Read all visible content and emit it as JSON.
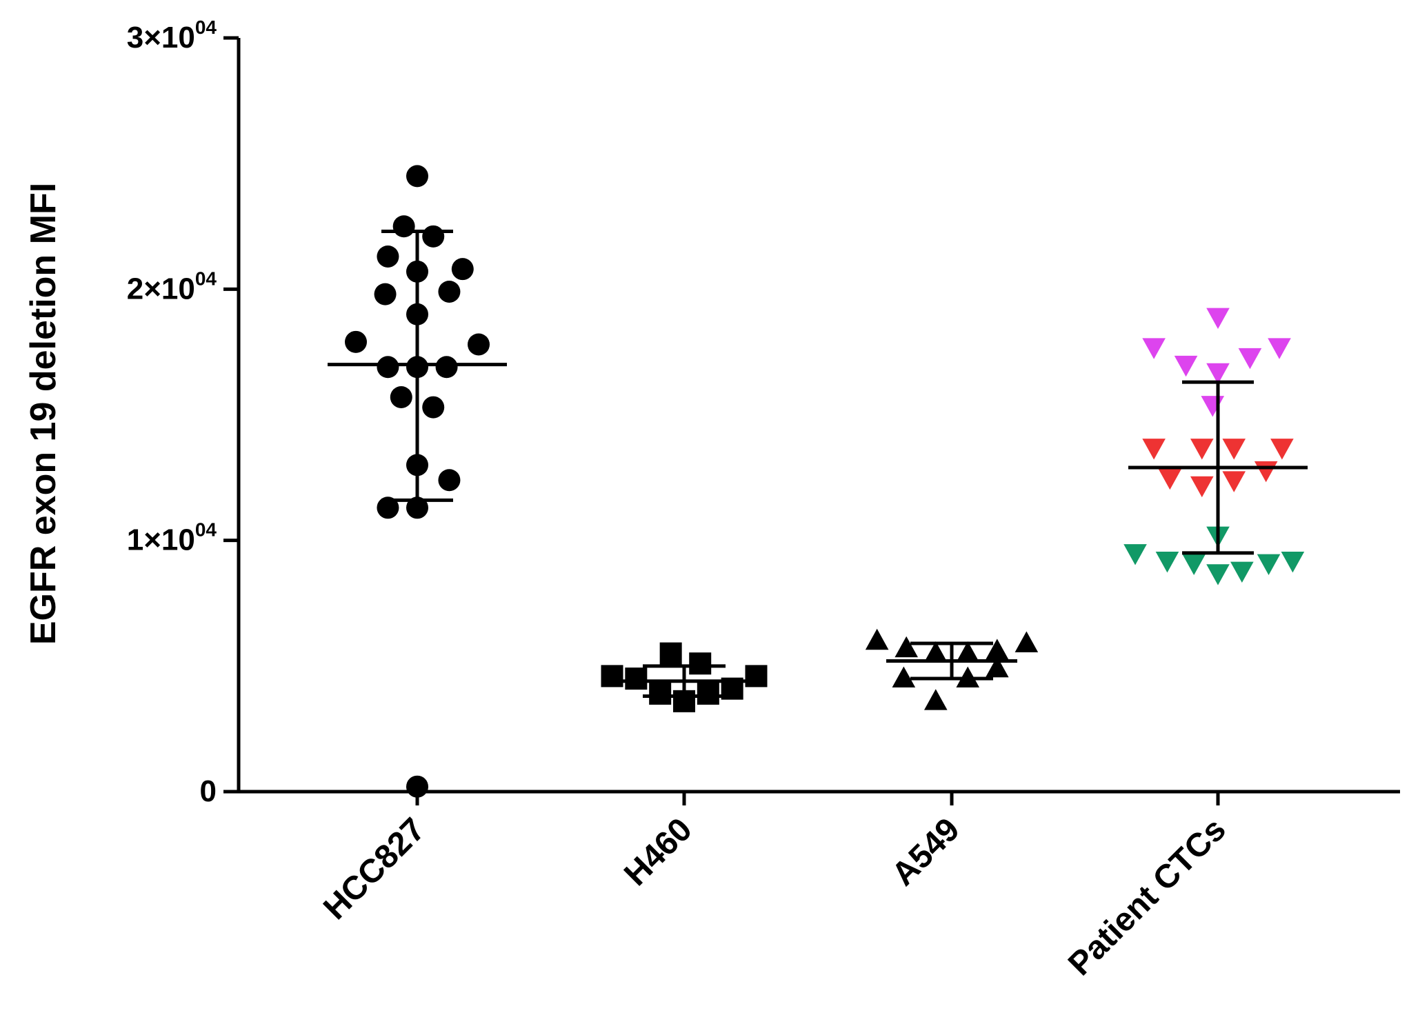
{
  "chart_data": {
    "type": "scatter",
    "title": "",
    "xlabel": "",
    "ylabel": "EGFR exon 19 deletion MFI",
    "ylim": [
      0,
      30000
    ],
    "ytick_values": [
      0,
      10000,
      20000,
      30000
    ],
    "ytick_labels": [
      {
        "mantissa": "0",
        "times": "",
        "base": "",
        "exp": ""
      },
      {
        "mantissa": "1",
        "times": "×",
        "base": "10",
        "exp": "04"
      },
      {
        "mantissa": "2",
        "times": "×",
        "base": "10",
        "exp": "04"
      },
      {
        "mantissa": "3",
        "times": "×",
        "base": "10",
        "exp": "04"
      }
    ],
    "grid": false,
    "groups": [
      {
        "name": "HCC827",
        "marker": "circle",
        "color": "#000000",
        "mean": 17000,
        "sd_upper": 22300,
        "sd_lower": 11600,
        "points": [
          {
            "dx": 0.0,
            "y": 24500
          },
          {
            "dx": -0.05,
            "y": 22500
          },
          {
            "dx": 0.06,
            "y": 22100
          },
          {
            "dx": -0.11,
            "y": 21300
          },
          {
            "dx": 0.0,
            "y": 20700
          },
          {
            "dx": 0.17,
            "y": 20800
          },
          {
            "dx": -0.12,
            "y": 19800
          },
          {
            "dx": 0.12,
            "y": 19900
          },
          {
            "dx": 0.0,
            "y": 19000
          },
          {
            "dx": -0.23,
            "y": 17900
          },
          {
            "dx": 0.23,
            "y": 17800
          },
          {
            "dx": -0.11,
            "y": 16900
          },
          {
            "dx": 0.0,
            "y": 16900
          },
          {
            "dx": 0.11,
            "y": 16900
          },
          {
            "dx": -0.06,
            "y": 15700
          },
          {
            "dx": 0.06,
            "y": 15300
          },
          {
            "dx": 0.0,
            "y": 13000
          },
          {
            "dx": 0.12,
            "y": 12400
          },
          {
            "dx": -0.11,
            "y": 11300
          },
          {
            "dx": 0.0,
            "y": 11300
          },
          {
            "dx": 0.0,
            "y": 200
          }
        ]
      },
      {
        "name": "H460",
        "marker": "square",
        "color": "#000000",
        "mean": 4400,
        "sd_upper": 5000,
        "sd_lower": 3800,
        "points": [
          {
            "dx": -0.27,
            "y": 4600
          },
          {
            "dx": -0.18,
            "y": 4500
          },
          {
            "dx": -0.05,
            "y": 5500
          },
          {
            "dx": 0.06,
            "y": 5100
          },
          {
            "dx": -0.09,
            "y": 3900
          },
          {
            "dx": 0.0,
            "y": 3600
          },
          {
            "dx": 0.09,
            "y": 3900
          },
          {
            "dx": 0.18,
            "y": 4100
          },
          {
            "dx": 0.27,
            "y": 4600
          }
        ]
      },
      {
        "name": "A549",
        "marker": "triangle-up",
        "color": "#000000",
        "mean": 5200,
        "sd_upper": 5900,
        "sd_lower": 4500,
        "points": [
          {
            "dx": -0.28,
            "y": 6000
          },
          {
            "dx": -0.17,
            "y": 5700
          },
          {
            "dx": -0.06,
            "y": 5500
          },
          {
            "dx": 0.06,
            "y": 5500
          },
          {
            "dx": 0.17,
            "y": 5600
          },
          {
            "dx": 0.28,
            "y": 5900
          },
          {
            "dx": -0.18,
            "y": 4500
          },
          {
            "dx": 0.06,
            "y": 4500
          },
          {
            "dx": 0.17,
            "y": 4900
          },
          {
            "dx": -0.06,
            "y": 3600
          }
        ]
      },
      {
        "name": "Patient CTCs",
        "marker": "triangle-down",
        "color": "#000000",
        "mean": 12900,
        "sd_upper": 16300,
        "sd_lower": 9500,
        "subsets": [
          {
            "color": "#dd44ee",
            "points": [
              {
                "dx": 0.0,
                "y": 18900
              },
              {
                "dx": -0.24,
                "y": 17700
              },
              {
                "dx": 0.23,
                "y": 17700
              },
              {
                "dx": 0.12,
                "y": 17300
              },
              {
                "dx": -0.12,
                "y": 17000
              },
              {
                "dx": 0.0,
                "y": 16700
              },
              {
                "dx": -0.02,
                "y": 15400
              }
            ]
          },
          {
            "color": "#ee3333",
            "points": [
              {
                "dx": -0.24,
                "y": 13700
              },
              {
                "dx": -0.06,
                "y": 13700
              },
              {
                "dx": 0.06,
                "y": 13700
              },
              {
                "dx": 0.24,
                "y": 13700
              },
              {
                "dx": -0.18,
                "y": 12500
              },
              {
                "dx": 0.18,
                "y": 12800
              },
              {
                "dx": -0.06,
                "y": 12200
              },
              {
                "dx": 0.06,
                "y": 12400
              }
            ]
          },
          {
            "color": "#119966",
            "points": [
              {
                "dx": 0.0,
                "y": 10200
              },
              {
                "dx": -0.31,
                "y": 9500
              },
              {
                "dx": -0.19,
                "y": 9200
              },
              {
                "dx": -0.09,
                "y": 9100
              },
              {
                "dx": 0.0,
                "y": 8700
              },
              {
                "dx": 0.09,
                "y": 8800
              },
              {
                "dx": 0.19,
                "y": 9100
              },
              {
                "dx": 0.28,
                "y": 9200
              }
            ]
          }
        ]
      }
    ]
  }
}
